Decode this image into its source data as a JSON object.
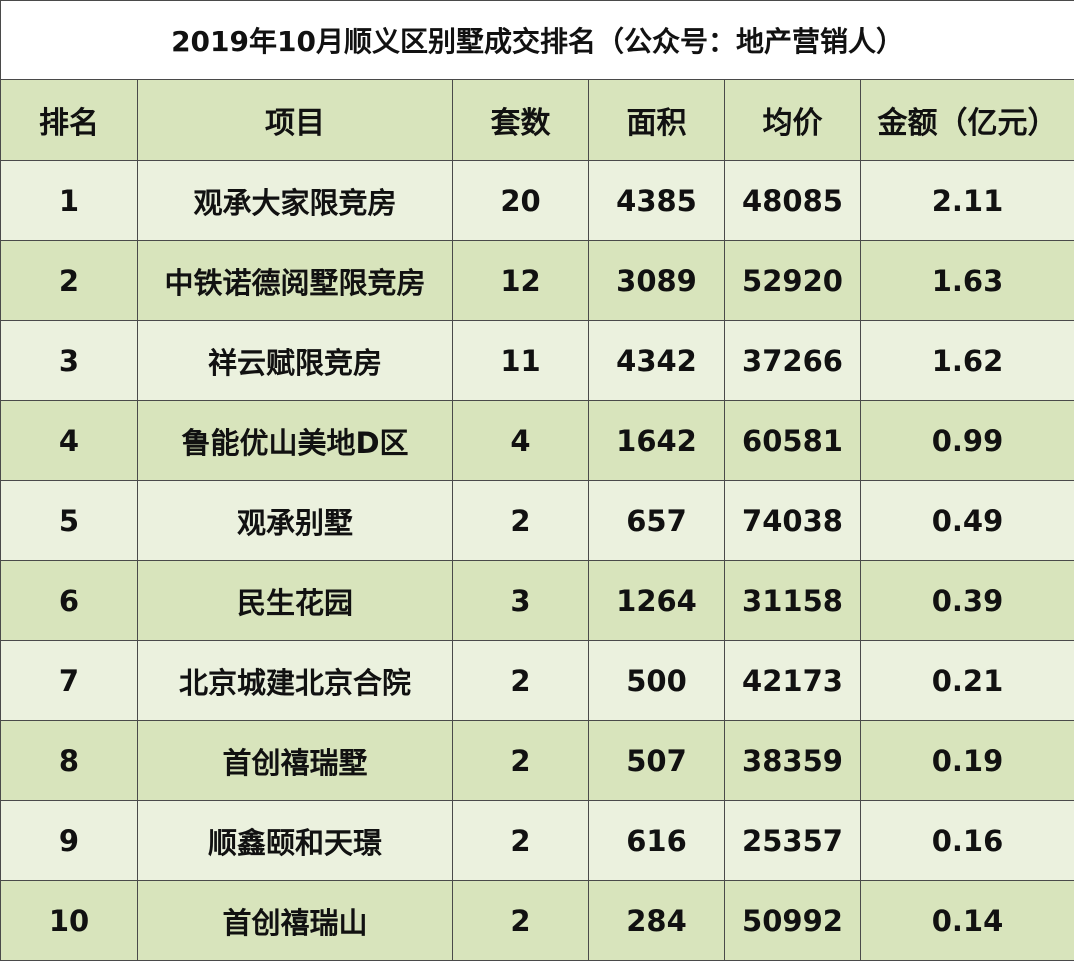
{
  "title": "2019年10月顺义区别墅成交排名（公众号：地产营销人）",
  "columns": [
    "排名",
    "项目",
    "套数",
    "面积",
    "均价",
    "金额（亿元）"
  ],
  "rows": [
    {
      "rank": "1",
      "project": "观承大家限竞房",
      "units": "20",
      "area": "4385",
      "avg_price": "48085",
      "amount": "2.11"
    },
    {
      "rank": "2",
      "project": "中铁诺德阅墅限竞房",
      "units": "12",
      "area": "3089",
      "avg_price": "52920",
      "amount": "1.63"
    },
    {
      "rank": "3",
      "project": "祥云赋限竞房",
      "units": "11",
      "area": "4342",
      "avg_price": "37266",
      "amount": "1.62"
    },
    {
      "rank": "4",
      "project": "鲁能优山美地D区",
      "units": "4",
      "area": "1642",
      "avg_price": "60581",
      "amount": "0.99"
    },
    {
      "rank": "5",
      "project": "观承别墅",
      "units": "2",
      "area": "657",
      "avg_price": "74038",
      "amount": "0.49"
    },
    {
      "rank": "6",
      "project": "民生花园",
      "units": "3",
      "area": "1264",
      "avg_price": "31158",
      "amount": "0.39"
    },
    {
      "rank": "7",
      "project": "北京城建北京合院",
      "units": "2",
      "area": "500",
      "avg_price": "42173",
      "amount": "0.21"
    },
    {
      "rank": "8",
      "project": "首创禧瑞墅",
      "units": "2",
      "area": "507",
      "avg_price": "38359",
      "amount": "0.19"
    },
    {
      "rank": "9",
      "project": "顺鑫颐和天璟",
      "units": "2",
      "area": "616",
      "avg_price": "25357",
      "amount": "0.16"
    },
    {
      "rank": "10",
      "project": "首创禧瑞山",
      "units": "2",
      "area": "284",
      "avg_price": "50992",
      "amount": "0.14"
    }
  ],
  "colors": {
    "header_bg": "#d8e4bc",
    "row_light": "#ebf1de",
    "row_dark": "#d8e4bc",
    "border": "#4a4a4a"
  }
}
